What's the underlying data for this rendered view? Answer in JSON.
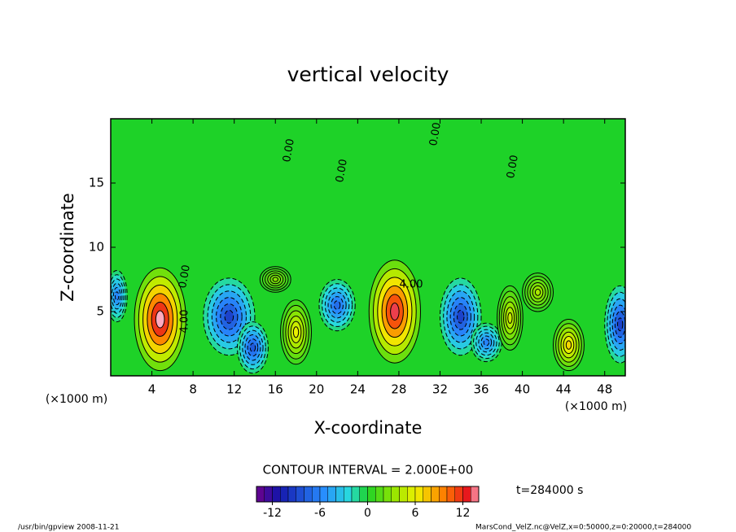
{
  "chart_data": {
    "type": "contour",
    "title": "vertical velocity",
    "x_label": "X-coordinate",
    "y_label": "Z-coordinate",
    "x_unit": "(×1000 m)",
    "y_unit": "(×1000 m)",
    "xlim": [
      0,
      50
    ],
    "xticks": [
      4,
      8,
      12,
      16,
      20,
      24,
      28,
      32,
      36,
      40,
      44,
      48
    ],
    "ylim": [
      0,
      20
    ],
    "yticks": [
      5,
      10,
      15
    ],
    "background_value": 0,
    "cells": [
      {
        "x": 4.8,
        "z": 4.4,
        "value": 14,
        "width": 5,
        "height": 8
      },
      {
        "x": 11.5,
        "z": 4.6,
        "value": -9,
        "width": 5,
        "height": 6
      },
      {
        "x": 13.8,
        "z": 2.2,
        "value": -8,
        "width": 3,
        "height": 4
      },
      {
        "x": 18,
        "z": 3.4,
        "value": 6,
        "width": 3,
        "height": 5
      },
      {
        "x": 22,
        "z": 5.5,
        "value": -7,
        "width": 3.5,
        "height": 4
      },
      {
        "x": 27.6,
        "z": 5,
        "value": 13,
        "width": 5,
        "height": 8
      },
      {
        "x": 34,
        "z": 4.6,
        "value": -9,
        "width": 4,
        "height": 6
      },
      {
        "x": 36.5,
        "z": 2.6,
        "value": -6,
        "width": 3,
        "height": 3
      },
      {
        "x": 38.8,
        "z": 4.5,
        "value": 5,
        "width": 2.5,
        "height": 5
      },
      {
        "x": 44.5,
        "z": 2.4,
        "value": 7,
        "width": 3,
        "height": 4
      },
      {
        "x": 49.5,
        "z": 4,
        "value": -9,
        "width": 3,
        "height": 6
      },
      {
        "x": 0.6,
        "z": 6.2,
        "value": -6,
        "width": 2,
        "height": 4
      },
      {
        "x": 41.5,
        "z": 6.5,
        "value": 4,
        "width": 3,
        "height": 3
      },
      {
        "x": 16,
        "z": 7.5,
        "value": 3,
        "width": 3,
        "height": 2
      }
    ],
    "contour_labels": [
      "0.00",
      "0.00",
      "0.00",
      "0.00",
      "0.00",
      "4.00",
      "4.00"
    ],
    "contour_interval_label": "CONTOUR INTERVAL = 2.000E+00",
    "colorbar": {
      "lim": [
        -14,
        14
      ],
      "ticks": [
        -12,
        -6,
        0,
        6,
        12
      ]
    },
    "time_label": "t=284000 s",
    "footer_left": "/usr/bin/gpview   2008-11-21",
    "footer_right": "MarsCond_VelZ.nc@VelZ,x=0:50000,z=0:20000,t=284000"
  }
}
